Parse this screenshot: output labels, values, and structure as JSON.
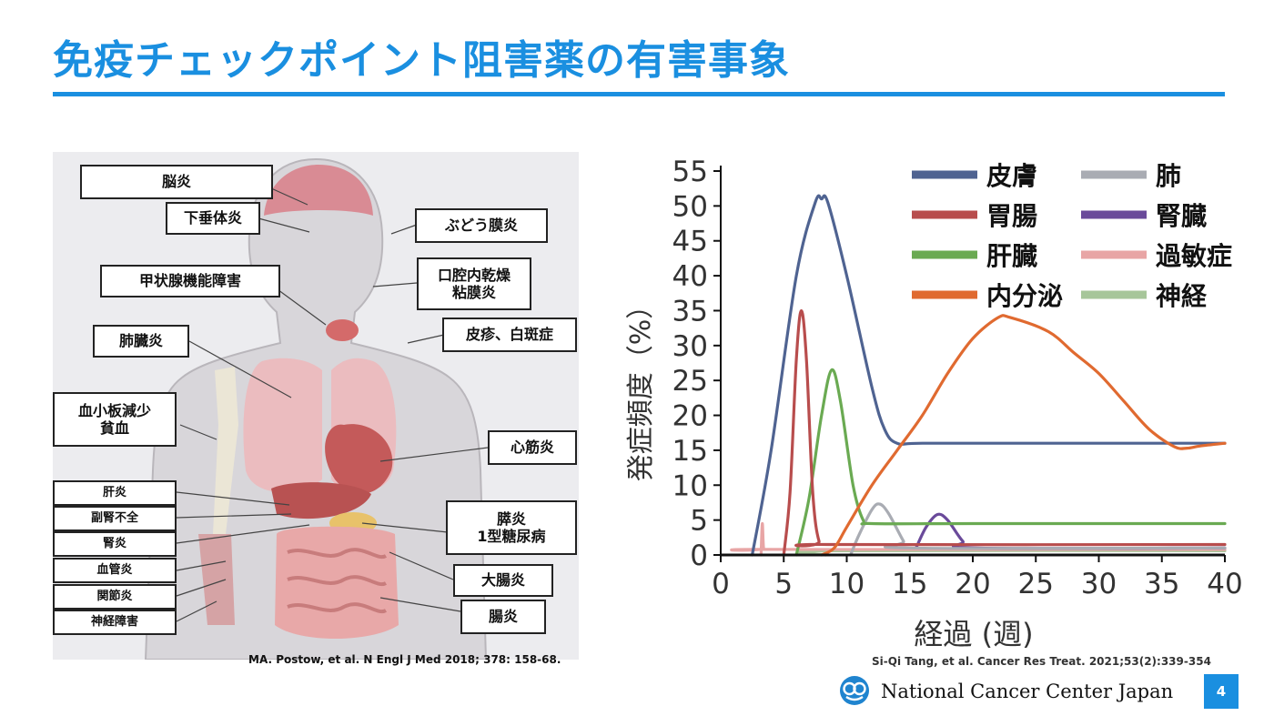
{
  "slide": {
    "title": "免疫チェックポイント阻害薬の有害事象",
    "page_number": "4",
    "footer_org": "National Cancer Center Japan",
    "left_citation": "MA. Postow, et al. N Engl J Med 2018; 378: 158-68.",
    "right_citation": "Si-Qi Tang, et al. Cancer Res Treat. 2021;53(2):339-354",
    "accent_color": "#1a8fe0",
    "logo_icon": "ncc-logo-icon"
  },
  "body_figure": {
    "illustration": "human-anatomy-illustration",
    "labels": [
      "脳炎",
      "下垂体炎",
      "ぶどう膜炎",
      "甲状腺機能障害",
      "口腔内乾燥\n粘膜炎",
      "皮疹、白斑症",
      "肺臓炎",
      "血小板減少\n貧血",
      "心筋炎",
      "肝炎",
      "副腎不全",
      "腎炎",
      "血管炎",
      "関節炎",
      "神経障害",
      "膵炎\n1型糖尿病",
      "大腸炎",
      "腸炎"
    ]
  },
  "chart_data": {
    "type": "line",
    "xlabel": "経過 (週)",
    "ylabel": "発症頻度（%）",
    "xlim": [
      0,
      40
    ],
    "ylim": [
      0,
      55
    ],
    "xticks": [
      0,
      5,
      10,
      15,
      20,
      25,
      30,
      35,
      40
    ],
    "yticks": [
      0,
      5,
      10,
      15,
      20,
      25,
      30,
      35,
      40,
      45,
      50,
      55
    ],
    "grid": false,
    "legend_position": "top-right",
    "series": [
      {
        "name": "皮膚",
        "color": "#4f6391",
        "points": [
          [
            2.5,
            0
          ],
          [
            4,
            15
          ],
          [
            6,
            40
          ],
          [
            7.5,
            50.5
          ],
          [
            8,
            51
          ],
          [
            8.5,
            50.5
          ],
          [
            10,
            40
          ],
          [
            12,
            24
          ],
          [
            13,
            18
          ],
          [
            14,
            16
          ],
          [
            16,
            16
          ],
          [
            25,
            16
          ],
          [
            35,
            16
          ],
          [
            40,
            16
          ]
        ]
      },
      {
        "name": "胃腸",
        "color": "#b84d4d",
        "points": [
          [
            5,
            0
          ],
          [
            5.5,
            9
          ],
          [
            6,
            28
          ],
          [
            6.4,
            35
          ],
          [
            6.8,
            28
          ],
          [
            7.3,
            9
          ],
          [
            7.8,
            2
          ],
          [
            8.5,
            1.5
          ],
          [
            40,
            1.5
          ]
        ]
      },
      {
        "name": "肝臓",
        "color": "#6aaa52",
        "points": [
          [
            6,
            0
          ],
          [
            7,
            8
          ],
          [
            8,
            20
          ],
          [
            8.8,
            26.5
          ],
          [
            9.5,
            22
          ],
          [
            10.5,
            10
          ],
          [
            11.3,
            5
          ],
          [
            12,
            4.5
          ],
          [
            20,
            4.5
          ],
          [
            40,
            4.5
          ]
        ]
      },
      {
        "name": "内分泌",
        "color": "#e06a30",
        "points": [
          [
            8,
            0
          ],
          [
            9,
            1
          ],
          [
            10,
            4
          ],
          [
            12,
            10
          ],
          [
            14,
            15
          ],
          [
            16,
            20
          ],
          [
            18,
            26
          ],
          [
            20,
            31
          ],
          [
            22,
            34
          ],
          [
            23,
            34
          ],
          [
            26,
            32
          ],
          [
            28,
            29
          ],
          [
            30,
            26
          ],
          [
            32,
            22
          ],
          [
            34,
            18
          ],
          [
            36,
            15.5
          ],
          [
            37,
            15.3
          ],
          [
            38,
            15.6
          ],
          [
            40,
            16
          ]
        ]
      },
      {
        "name": "肺",
        "color": "#a9acb3",
        "points": [
          [
            10.3,
            0
          ],
          [
            11,
            3
          ],
          [
            12,
            6.5
          ],
          [
            12.6,
            7.3
          ],
          [
            13.3,
            6
          ],
          [
            14.5,
            2
          ],
          [
            15,
            1
          ],
          [
            40,
            1
          ]
        ]
      },
      {
        "name": "腎臓",
        "color": "#6a4a9a",
        "points": [
          [
            15.5,
            1
          ],
          [
            16.3,
            4
          ],
          [
            17.2,
            5.8
          ],
          [
            18,
            5
          ],
          [
            19.2,
            2
          ],
          [
            20.2,
            1
          ],
          [
            40,
            1
          ]
        ]
      },
      {
        "name": "過敏症",
        "color": "#e8a5a5",
        "points": [
          [
            3.2,
            0
          ],
          [
            3.3,
            4.5
          ],
          [
            3.4,
            1
          ],
          [
            3.6,
            0.8
          ],
          [
            40,
            0.8
          ]
        ]
      },
      {
        "name": "神経",
        "color": "#a7c69a",
        "points": [
          [
            8.3,
            0
          ],
          [
            8.6,
            0.6
          ],
          [
            40,
            0.6
          ]
        ]
      }
    ]
  }
}
